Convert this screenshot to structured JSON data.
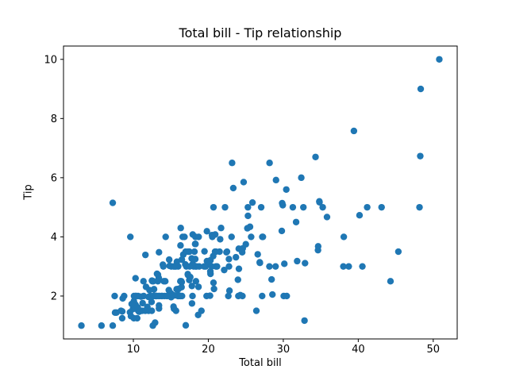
{
  "chart_data": {
    "type": "scatter",
    "title": "Total bill - Tip relationship",
    "xlabel": "Total bill",
    "ylabel": "Tip",
    "xlim": [
      0.683,
      53.197
    ],
    "ylim": [
      0.55,
      10.45
    ],
    "xticks": [
      10,
      20,
      30,
      40,
      50
    ],
    "yticks": [
      2,
      4,
      6,
      8,
      10
    ],
    "grid": false,
    "legend": "none",
    "marker_color": "#1f77b4",
    "marker_radius": 4.2,
    "frame_color": "#000000",
    "x": [
      16.99,
      10.34,
      21.01,
      23.68,
      24.59,
      25.29,
      8.77,
      26.88,
      15.04,
      14.78,
      10.27,
      35.26,
      15.42,
      18.43,
      14.83,
      21.58,
      10.33,
      16.29,
      16.97,
      20.65,
      17.92,
      20.29,
      15.77,
      39.42,
      19.82,
      17.81,
      13.37,
      12.69,
      21.7,
      19.65,
      9.55,
      18.35,
      15.06,
      20.69,
      17.78,
      24.06,
      16.31,
      16.93,
      18.69,
      31.27,
      16.04,
      17.46,
      13.94,
      9.68,
      30.4,
      18.29,
      22.23,
      32.4,
      28.55,
      18.04,
      12.54,
      10.29,
      34.81,
      9.94,
      25.56,
      19.49,
      38.01,
      26.41,
      11.24,
      48.27,
      20.29,
      13.81,
      11.02,
      18.29,
      17.59,
      20.08,
      16.45,
      3.07,
      20.23,
      15.01,
      12.02,
      17.07,
      26.86,
      25.28,
      14.73,
      10.51,
      17.92,
      27.2,
      22.76,
      17.29,
      19.44,
      16.66,
      10.07,
      32.68,
      15.98,
      34.83,
      13.03,
      18.28,
      24.71,
      21.16,
      28.97,
      22.49,
      5.75,
      16.32,
      22.75,
      40.17,
      27.28,
      12.03,
      21.01,
      12.46,
      11.35,
      15.38,
      44.3,
      22.42,
      20.92,
      15.36,
      20.49,
      25.21,
      18.24,
      14.31,
      14,
      7.25,
      38.07,
      23.95,
      25.71,
      17.31,
      29.93,
      10.65,
      12.43,
      24.08,
      11.69,
      13.42,
      14.26,
      15.95,
      12.48,
      29.8,
      8.52,
      14.52,
      11.38,
      22.82,
      19.08,
      20.27,
      11.17,
      12.26,
      18.26,
      8.51,
      10.33,
      14.15,
      16,
      13.16,
      17.47,
      34.3,
      41.19,
      27.05,
      16.43,
      8.35,
      18.64,
      11.87,
      9.78,
      7.51,
      14.07,
      13.13,
      17.26,
      24.55,
      19.77,
      29.85,
      48.17,
      25,
      13.39,
      16.49,
      21.5,
      12.66,
      16.21,
      13.81,
      17.51,
      24.52,
      20.76,
      31.71,
      10.59,
      10.63,
      50.81,
      15.81,
      7.25,
      31.85,
      16.82,
      32.9,
      17.89,
      14.48,
      9.6,
      34.63,
      34.65,
      23.33,
      45.35,
      23.17,
      40.55,
      20.69,
      20.9,
      30.46,
      18.15,
      23.1,
      15.69,
      19.81,
      28.44,
      15.48,
      16.58,
      7.56,
      10.34,
      43.11,
      13,
      13.51,
      18.71,
      12.74,
      13,
      16.4,
      20.53,
      16.47,
      26.59,
      38.73,
      24.27,
      12.76,
      30.06,
      25.89,
      48.33,
      13.27,
      28.17,
      12.9,
      28.15,
      11.59,
      7.74,
      30.14,
      12.16,
      13.42,
      8.58,
      15.98,
      13.42,
      16.27,
      10.09,
      20.45,
      13.28,
      22.12,
      24.01,
      15.69,
      11.61,
      10.77,
      15.53,
      10.07,
      12.6,
      32.83,
      35.83,
      29.03,
      27.18,
      22.67,
      17.82,
      18.78
    ],
    "y": [
      1.01,
      1.66,
      3.5,
      3.31,
      3.61,
      4.71,
      2,
      3.12,
      1.96,
      3.23,
      1.71,
      5,
      1.57,
      3,
      3.02,
      3.92,
      1.67,
      3.71,
      3.5,
      3.35,
      4.08,
      2.75,
      2.23,
      7.58,
      3.18,
      2.34,
      2,
      2,
      4.3,
      3,
      1.45,
      2.5,
      3,
      2.45,
      3.27,
      3.6,
      2,
      3.07,
      2.31,
      5,
      2.24,
      2.54,
      3.06,
      1.32,
      5.6,
      3,
      5,
      6,
      2.05,
      3,
      2.5,
      2.6,
      5.2,
      1.56,
      4.34,
      3.51,
      3,
      1.5,
      1.76,
      6.73,
      3.21,
      2,
      1.98,
      3.76,
      2.64,
      3.15,
      2.47,
      1,
      2.01,
      2.09,
      1.97,
      3,
      3.14,
      5,
      2.2,
      1.25,
      3.08,
      4,
      3,
      2.71,
      3,
      3.4,
      1.83,
      5,
      2.03,
      5.17,
      2,
      4,
      5.85,
      3,
      3,
      3.5,
      1,
      4.3,
      3.25,
      4.73,
      4,
      1.5,
      3,
      1.5,
      2.5,
      3,
      2.5,
      3.48,
      4.08,
      1.64,
      4.06,
      4.29,
      3.76,
      4,
      3,
      1,
      4,
      2.55,
      4,
      3.5,
      5.07,
      1.5,
      1.8,
      2.92,
      2.31,
      1.68,
      2.5,
      2,
      2.52,
      4.2,
      1.48,
      2,
      2,
      2.18,
      1.5,
      2.83,
      1.5,
      2,
      3.25,
      1.25,
      2,
      2,
      2,
      2.75,
      3.5,
      6.7,
      5,
      5,
      2.3,
      1.5,
      1.36,
      1.63,
      1.73,
      2,
      2.5,
      2,
      2.74,
      2,
      2,
      5.14,
      5,
      3.75,
      2.61,
      2,
      3.5,
      2.5,
      2,
      2,
      3,
      3.48,
      2.24,
      4.5,
      1.61,
      2,
      10,
      3.16,
      5.15,
      3.18,
      4,
      3.11,
      2,
      2,
      4,
      3.55,
      3.68,
      5.65,
      3.5,
      6.5,
      3,
      5,
      3.5,
      2,
      3.5,
      4,
      1.5,
      4.19,
      2.56,
      2.02,
      4,
      1.44,
      2,
      5,
      2,
      2,
      4,
      2.01,
      2,
      2.5,
      4,
      3.23,
      3.41,
      3,
      2.03,
      2.23,
      2,
      5.16,
      9,
      2.5,
      6.5,
      1.1,
      3,
      1.5,
      1.44,
      3.09,
      2.2,
      3.48,
      1.92,
      3,
      1.58,
      2.5,
      2,
      3,
      2.72,
      2.88,
      2,
      3,
      3.39,
      1.47,
      3,
      1.25,
      1,
      1.17,
      4.67,
      5.92,
      2,
      2,
      1.75,
      3
    ]
  }
}
